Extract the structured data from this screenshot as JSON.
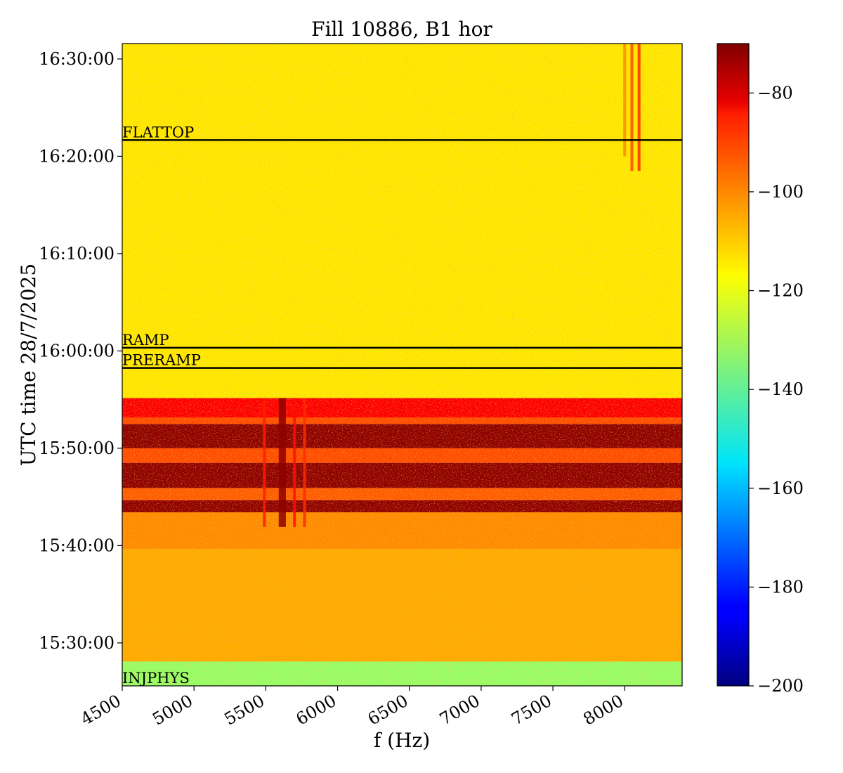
{
  "chart_data": {
    "type": "heatmap",
    "title": "Fill 10886, B1 hor",
    "xlabel": "f (Hz)",
    "ylabel": "UTC time 28/7/2025",
    "xlim": [
      4500,
      8400
    ],
    "xticks": [
      4500,
      5000,
      5500,
      6000,
      6500,
      7000,
      7500,
      8000
    ],
    "ylim": [
      "15:25:35",
      "16:31:35"
    ],
    "yticks": [
      "15:30:00",
      "15:40:00",
      "15:50:00",
      "16:00:00",
      "16:10:00",
      "16:20:00",
      "16:30:00"
    ],
    "colorscale": "jet",
    "colorbar": {
      "range": [
        -200,
        -70
      ],
      "ticks": [
        -200,
        -180,
        -160,
        -140,
        -120,
        -100,
        -80
      ]
    },
    "phase_markers": [
      {
        "label": "FLATTOP",
        "time": "16:21:40"
      },
      {
        "label": "RAMP",
        "time": "16:00:20"
      },
      {
        "label": "PRERAMP",
        "time": "15:58:15"
      },
      {
        "label": "INJPHYS",
        "time": "15:25:35"
      }
    ],
    "bands": [
      {
        "from": "15:25:35",
        "to": "15:28:05",
        "level": -132
      },
      {
        "from": "15:28:05",
        "to": "15:39:40",
        "level": -108
      },
      {
        "from": "15:39:40",
        "to": "15:43:25",
        "level": -104
      },
      {
        "from": "15:43:25",
        "to": "15:44:40",
        "level": -72
      },
      {
        "from": "15:44:40",
        "to": "15:45:55",
        "level": -98
      },
      {
        "from": "15:45:55",
        "to": "15:48:30",
        "level": -72
      },
      {
        "from": "15:48:30",
        "to": "15:50:00",
        "level": -96
      },
      {
        "from": "15:50:00",
        "to": "15:52:30",
        "level": -72
      },
      {
        "from": "15:52:30",
        "to": "15:53:10",
        "level": -96
      },
      {
        "from": "15:53:10",
        "to": "15:55:10",
        "level": -86
      },
      {
        "from": "15:55:10",
        "to": "16:31:35",
        "level": -116
      }
    ],
    "line_features": [
      {
        "f_from": 5590,
        "f_to": 5640,
        "t_from": "15:41:55",
        "t_to": "15:55:10",
        "level": -72
      },
      {
        "f_from": 5480,
        "f_to": 5500,
        "t_from": "15:41:55",
        "t_to": "15:55:10",
        "level": -90
      },
      {
        "f_from": 5690,
        "f_to": 5710,
        "t_from": "15:41:55",
        "t_to": "15:55:10",
        "level": -88
      },
      {
        "f_from": 5760,
        "f_to": 5780,
        "t_from": "15:41:55",
        "t_to": "15:55:10",
        "level": -92
      },
      {
        "f_from": 8040,
        "f_to": 8060,
        "t_from": "16:18:30",
        "t_to": "16:31:35",
        "level": -96
      },
      {
        "f_from": 8090,
        "f_to": 8110,
        "t_from": "16:18:30",
        "t_to": "16:31:35",
        "level": -92
      },
      {
        "f_from": 7990,
        "f_to": 8010,
        "t_from": "16:20:00",
        "t_to": "16:31:35",
        "level": -104
      }
    ]
  }
}
